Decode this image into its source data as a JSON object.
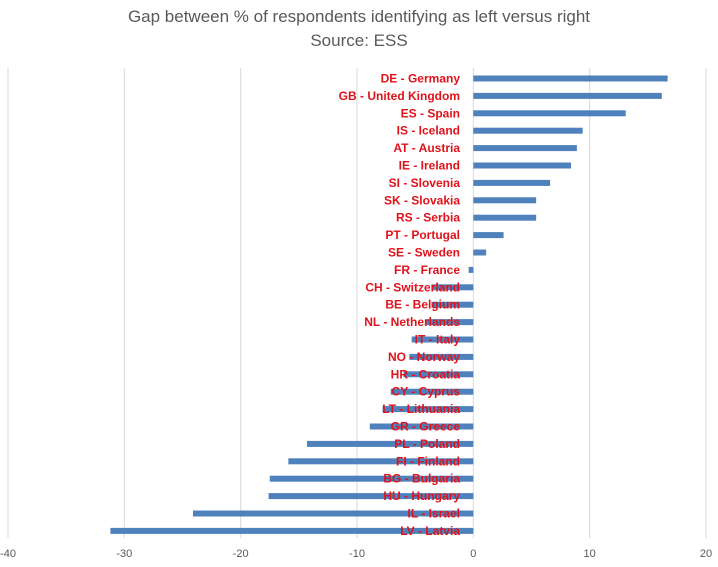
{
  "chart_data": {
    "type": "bar",
    "orientation": "horizontal",
    "title": "Gap between % of respondents identifying as left versus right",
    "subtitle": "Source: ESS",
    "xlim": [
      -40,
      20
    ],
    "xticks": [
      "-40",
      "-30",
      "-20",
      "-10",
      "0",
      "10",
      "20"
    ],
    "xtick_values": [
      -40,
      -30,
      -20,
      -10,
      0,
      10,
      20
    ],
    "gridlines": true,
    "bar_color": "#4F81BD",
    "label_color": "#E0121B",
    "categories": [
      "DE - Germany",
      "GB - United Kingdom",
      "ES - Spain",
      "IS - Iceland",
      "AT - Austria",
      "IE - Ireland",
      "SI - Slovenia",
      "SK - Slovakia",
      "RS - Serbia",
      "PT - Portugal",
      "SE - Sweden",
      "FR - France",
      "CH - Switzerland",
      "BE - Belgium",
      "NL - Netherlands",
      "IT - Italy",
      "NO - Norway",
      "HR - Croatia",
      "CY - Cyprus",
      "LT - Lithuania",
      "GR - Greece",
      "PL - Poland",
      "FI - Finland",
      "BG - Bulgaria",
      "HU - Hungary",
      "IL - Israel",
      "LV - Latvia"
    ],
    "values": [
      16.7,
      16.2,
      13.1,
      9.4,
      8.9,
      8.4,
      6.6,
      5.4,
      5.4,
      2.6,
      1.1,
      -0.4,
      -3.6,
      -3.6,
      -4.1,
      -5.3,
      -5.5,
      -6.0,
      -7.1,
      -7.8,
      -8.9,
      -14.3,
      -15.9,
      -17.5,
      -17.6,
      -24.1,
      -31.2
    ]
  }
}
